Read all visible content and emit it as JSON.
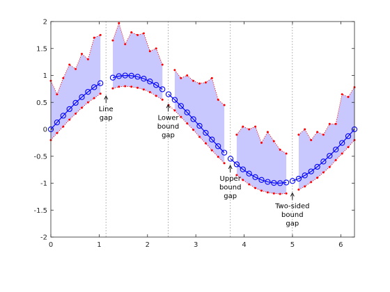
{
  "chart_data": {
    "type": "line",
    "xlim": [
      0,
      6.283
    ],
    "ylim": [
      -2,
      2
    ],
    "x_ticks": [
      0,
      1,
      2,
      3,
      4,
      5,
      6
    ],
    "y_ticks": [
      -2,
      -1.5,
      -1,
      -0.5,
      0,
      0.5,
      1,
      1.5,
      2
    ],
    "grid": false,
    "colors": {
      "line": "#0000ff",
      "band": "#c8c8ff",
      "bound": "#ff0000",
      "gap_marker": "#999999"
    },
    "gap_x": [
      1.142,
      2.428,
      3.713,
      4.998
    ],
    "line": {
      "x": [
        0,
        0.128,
        0.256,
        0.385,
        0.513,
        0.641,
        0.769,
        0.897,
        1.026,
        1.282,
        1.41,
        1.538,
        1.667,
        1.795,
        1.923,
        2.051,
        2.179,
        2.308,
        2.436,
        2.564,
        2.692,
        2.82,
        2.949,
        3.077,
        3.205,
        3.333,
        3.462,
        3.59,
        3.718,
        3.846,
        3.974,
        4.103,
        4.231,
        4.359,
        4.487,
        4.615,
        4.744,
        4.872,
        5.0,
        5.128,
        5.256,
        5.385,
        5.513,
        5.641,
        5.769,
        5.897,
        6.026,
        6.154,
        6.283
      ],
      "y": [
        0,
        0.128,
        0.253,
        0.375,
        0.491,
        0.598,
        0.696,
        0.782,
        0.855,
        0.959,
        0.987,
        0.999,
        0.995,
        0.975,
        0.939,
        0.888,
        0.822,
        0.743,
        0.65,
        0.547,
        0.434,
        0.314,
        0.188,
        0.064,
        -0.064,
        -0.19,
        -0.313,
        -0.433,
        -0.546,
        -0.65,
        -0.743,
        -0.822,
        -0.888,
        -0.939,
        -0.975,
        -0.995,
        -0.999,
        -0.987,
        -0.959,
        -0.916,
        -0.856,
        -0.782,
        -0.696,
        -0.598,
        -0.491,
        -0.375,
        -0.253,
        -0.128,
        0
      ]
    },
    "upper_bound": {
      "x": [
        0,
        0.128,
        0.256,
        0.385,
        0.513,
        0.641,
        0.769,
        0.897,
        1.026,
        1.282,
        1.41,
        1.538,
        1.667,
        1.795,
        1.923,
        2.051,
        2.179,
        2.308,
        2.564,
        2.692,
        2.82,
        2.949,
        3.077,
        3.205,
        3.333,
        3.462,
        3.59,
        3.846,
        3.974,
        4.103,
        4.231,
        4.359,
        4.487,
        4.615,
        4.744,
        4.872,
        5.128,
        5.256,
        5.385,
        5.513,
        5.641,
        5.769,
        5.897,
        6.026,
        6.154,
        6.283
      ],
      "y": [
        0.9,
        0.65,
        0.95,
        1.2,
        1.12,
        1.4,
        1.3,
        1.7,
        1.75,
        1.65,
        1.97,
        1.58,
        1.8,
        1.75,
        1.78,
        1.45,
        1.5,
        1.2,
        1.1,
        0.95,
        1.0,
        0.9,
        0.85,
        0.87,
        0.95,
        0.55,
        0.45,
        -0.1,
        0.05,
        0.0,
        0.05,
        -0.25,
        -0.05,
        -0.22,
        -0.38,
        -0.45,
        -0.1,
        0.0,
        -0.2,
        -0.05,
        -0.1,
        0.1,
        0.1,
        0.65,
        0.6,
        0.78
      ]
    },
    "lower_bound": {
      "x": [
        0,
        0.128,
        0.256,
        0.385,
        0.513,
        0.641,
        0.769,
        0.897,
        1.026,
        1.282,
        1.41,
        1.538,
        1.667,
        1.795,
        1.923,
        2.051,
        2.179,
        2.308,
        2.436,
        2.564,
        2.692,
        2.82,
        2.949,
        3.077,
        3.205,
        3.333,
        3.462,
        3.59,
        3.846,
        3.974,
        4.103,
        4.231,
        4.359,
        4.487,
        4.615,
        4.744,
        4.872,
        5.128,
        5.256,
        5.385,
        5.513,
        5.641,
        5.769,
        5.897,
        6.026,
        6.154,
        6.283
      ],
      "y": [
        -0.2,
        -0.07,
        0.05,
        0.18,
        0.29,
        0.4,
        0.5,
        0.58,
        0.66,
        0.76,
        0.79,
        0.8,
        0.79,
        0.77,
        0.74,
        0.69,
        0.62,
        0.55,
        0.45,
        0.35,
        0.23,
        0.11,
        -0.01,
        -0.14,
        -0.26,
        -0.39,
        -0.51,
        -0.63,
        -0.85,
        -0.94,
        -1.02,
        -1.09,
        -1.14,
        -1.17,
        -1.19,
        -1.2,
        -1.19,
        -1.12,
        -1.06,
        -0.98,
        -0.9,
        -0.8,
        -0.7,
        -0.57,
        -0.45,
        -0.33,
        -0.2
      ]
    },
    "annotations": [
      {
        "lines": [
          "Line",
          "gap"
        ],
        "x": 1.142,
        "y": 0.62
      },
      {
        "lines": [
          "Lower",
          "bound",
          "gap"
        ],
        "x": 2.428,
        "y": 0.46
      },
      {
        "lines": [
          "Upper",
          "bound",
          "gap"
        ],
        "x": 3.713,
        "y": -0.67
      },
      {
        "lines": [
          "Two-sided",
          "bound",
          "gap"
        ],
        "x": 4.998,
        "y": -1.18
      }
    ]
  }
}
